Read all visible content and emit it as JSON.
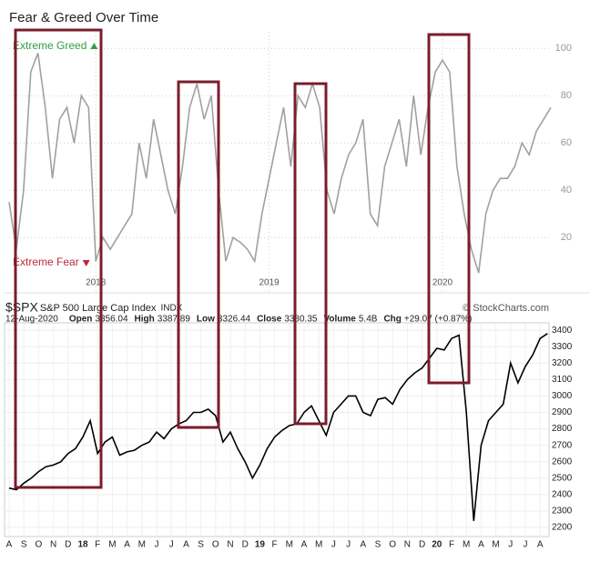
{
  "chart_data": [
    {
      "type": "line",
      "title": "Fear & Greed Over Time",
      "color": "#a0a0a0",
      "annotations": [
        {
          "text": "Extreme Greed",
          "color": "#2e9e4a"
        },
        {
          "text": "Extreme Fear",
          "color": "#c0283c"
        }
      ],
      "categories": [
        null,
        null,
        null,
        null,
        null,
        null,
        null,
        null,
        null,
        null,
        null,
        null,
        "2018",
        null,
        null,
        null,
        null,
        null,
        null,
        null,
        null,
        null,
        null,
        null,
        null,
        null,
        null,
        null,
        null,
        null,
        null,
        null,
        null,
        null,
        null,
        null,
        "2019",
        null,
        null,
        null,
        null,
        null,
        null,
        null,
        null,
        null,
        null,
        null,
        null,
        null,
        null,
        null,
        null,
        null,
        null,
        null,
        null,
        null,
        null,
        null,
        "2020",
        null,
        null,
        null,
        null,
        null,
        null,
        null,
        null,
        null,
        null,
        null,
        null,
        null,
        null,
        null
      ],
      "values": [
        35,
        15,
        40,
        90,
        98,
        75,
        45,
        70,
        75,
        60,
        80,
        75,
        10,
        20,
        15,
        20,
        25,
        30,
        60,
        45,
        70,
        55,
        40,
        30,
        50,
        75,
        85,
        70,
        80,
        40,
        10,
        20,
        18,
        15,
        10,
        30,
        45,
        60,
        75,
        50,
        80,
        75,
        85,
        75,
        40,
        30,
        45,
        55,
        60,
        70,
        30,
        25,
        50,
        60,
        70,
        50,
        80,
        55,
        75,
        90,
        95,
        90,
        50,
        30,
        15,
        5,
        30,
        40,
        45,
        45,
        50,
        60,
        55,
        65,
        70,
        75
      ],
      "ylim": [
        -3,
        107
      ],
      "yticks": [
        20,
        40,
        60,
        80,
        100
      ],
      "grid": true
    },
    {
      "type": "line",
      "color": "#000000",
      "symbol": "$SPX",
      "name": "S&P 500 Large Cap Index",
      "exchange": "INDX",
      "source": "© StockCharts.com",
      "date": "12-Aug-2020",
      "quote": [
        {
          "label": "Open",
          "value": "3356.04"
        },
        {
          "label": "High",
          "value": "3387.89"
        },
        {
          "label": "Low",
          "value": "3326.44"
        },
        {
          "label": "Close",
          "value": "3380.35"
        },
        {
          "label": "Volume",
          "value": "5.4B"
        },
        {
          "label": "Chg",
          "value": "+29.07 (+0.87%)"
        }
      ],
      "categories": [
        "A",
        null,
        "S",
        null,
        "O",
        null,
        "N",
        null,
        "D",
        null,
        "18",
        null,
        "F",
        null,
        "M",
        null,
        "A",
        null,
        "M",
        null,
        "J",
        null,
        "J",
        null,
        "A",
        null,
        "S",
        null,
        "O",
        null,
        "N",
        null,
        "D",
        null,
        "19",
        null,
        "F",
        null,
        "M",
        null,
        "A",
        null,
        "M",
        null,
        "J",
        null,
        "J",
        null,
        "A",
        null,
        "S",
        null,
        "O",
        null,
        "N",
        null,
        "D",
        null,
        "20",
        null,
        "F",
        null,
        "M",
        null,
        "A",
        null,
        "M",
        null,
        "J",
        null,
        "J",
        null,
        "A",
        null
      ],
      "values": [
        2440,
        2430,
        2470,
        2500,
        2540,
        2570,
        2580,
        2600,
        2650,
        2680,
        2750,
        2850,
        2650,
        2720,
        2750,
        2640,
        2660,
        2670,
        2700,
        2720,
        2780,
        2740,
        2800,
        2830,
        2850,
        2900,
        2900,
        2920,
        2880,
        2720,
        2780,
        2680,
        2600,
        2500,
        2580,
        2680,
        2750,
        2790,
        2820,
        2830,
        2900,
        2940,
        2850,
        2760,
        2900,
        2950,
        3000,
        3000,
        2900,
        2880,
        2980,
        2990,
        2950,
        3040,
        3100,
        3140,
        3170,
        3230,
        3290,
        3280,
        3350,
        3370,
        2900,
        2240,
        2700,
        2850,
        2900,
        2950,
        3200,
        3080,
        3180,
        3250,
        3350,
        3380
      ],
      "ylim": [
        2145,
        3445
      ],
      "yticks": [
        2200,
        2300,
        2400,
        2500,
        2600,
        2700,
        2800,
        2900,
        3000,
        3100,
        3200,
        3300,
        3400
      ],
      "grid": true
    }
  ]
}
